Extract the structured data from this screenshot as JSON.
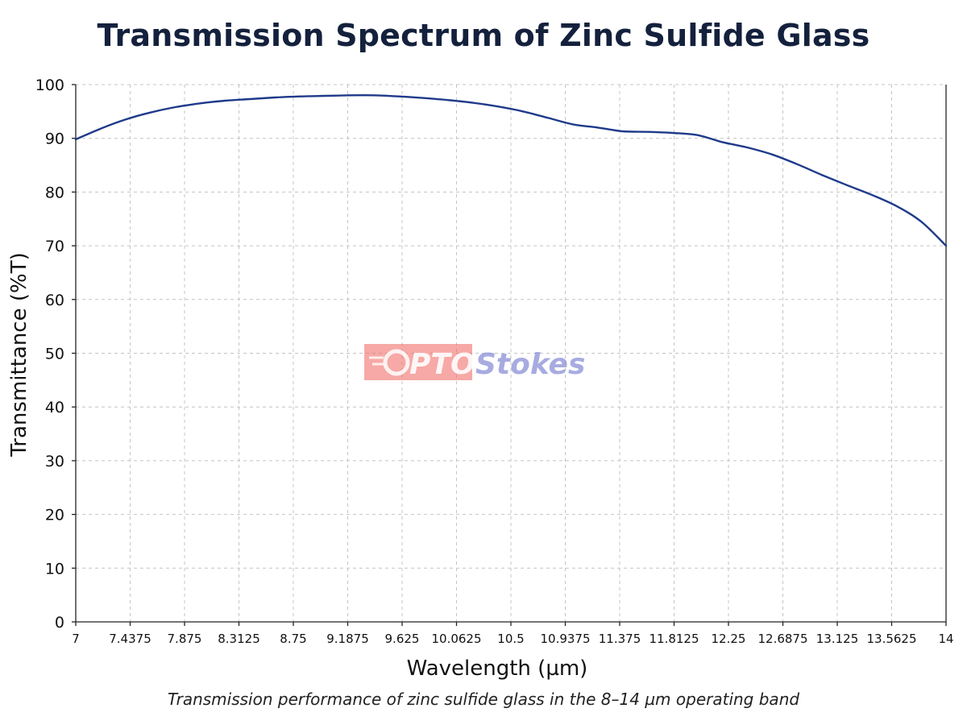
{
  "chart_data": {
    "type": "line",
    "title": "Transmission Spectrum of Zinc Sulfide Glass",
    "caption": "Transmission performance of zinc sulfide glass in the 8–14 µm operating band",
    "xlabel": "Wavelength (µm)",
    "ylabel": "Transmittance (%T)",
    "xlim": [
      7,
      14
    ],
    "ylim": [
      0,
      100
    ],
    "x_ticks": [
      "7",
      "7.4375",
      "7.875",
      "8.3125",
      "8.75",
      "9.1875",
      "9.625",
      "10.0625",
      "10.5",
      "10.9375",
      "11.375",
      "11.8125",
      "12.25",
      "12.6875",
      "13.125",
      "13.5625",
      "14"
    ],
    "y_ticks": [
      "0",
      "10",
      "20",
      "30",
      "40",
      "50",
      "60",
      "70",
      "80",
      "90",
      "100"
    ],
    "grid": true,
    "series": [
      {
        "color": "#1f3a8a",
        "x": [
          7.0,
          7.2,
          7.4,
          7.6,
          7.8,
          8.0,
          8.2,
          8.4,
          8.6,
          8.8,
          9.0,
          9.2,
          9.4,
          9.6,
          9.8,
          10.0,
          10.2,
          10.4,
          10.6,
          10.8,
          11.0,
          11.2,
          11.4,
          11.6,
          11.8,
          12.0,
          12.2,
          12.4,
          12.6,
          12.8,
          13.0,
          13.2,
          13.4,
          13.6,
          13.8,
          14.0
        ],
        "y": [
          89.8,
          91.8,
          93.5,
          94.8,
          95.8,
          96.5,
          97.0,
          97.3,
          97.6,
          97.8,
          97.9,
          98.0,
          98.0,
          97.8,
          97.5,
          97.1,
          96.6,
          95.9,
          95.0,
          93.8,
          92.6,
          92.0,
          91.3,
          91.2,
          91.0,
          90.6,
          89.3,
          88.3,
          87.0,
          85.2,
          83.2,
          81.3,
          79.5,
          77.4,
          74.5,
          70.0
        ]
      }
    ]
  },
  "watermark": {
    "part1": "PTO",
    "part2": "Stokes",
    "color1": "#f0706a",
    "color2": "#8a8fd6"
  }
}
